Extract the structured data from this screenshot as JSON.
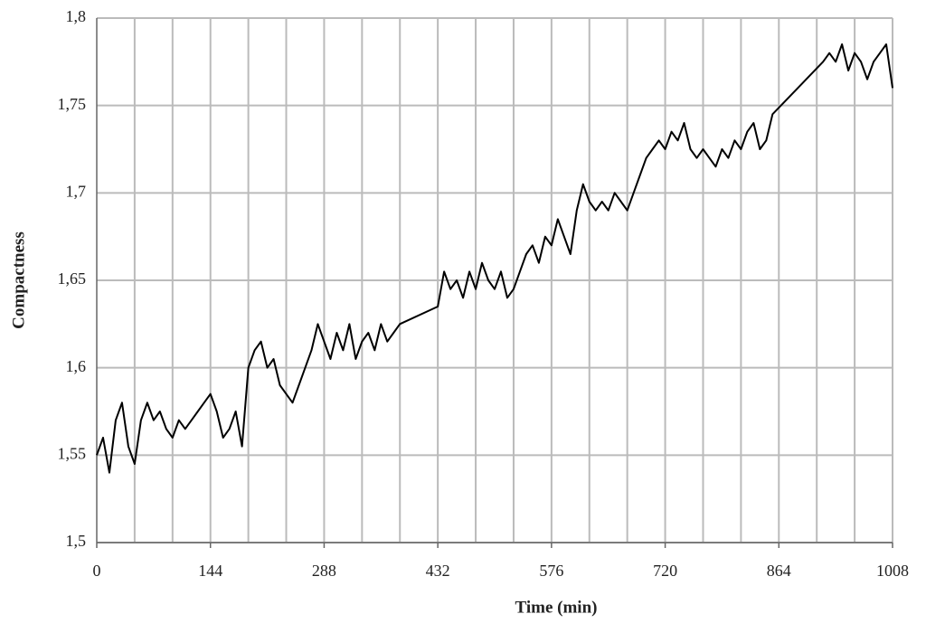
{
  "chart_data": {
    "type": "line",
    "x_label": "Time (min)",
    "y_label": "Compactness",
    "xlim": [
      0,
      1008
    ],
    "xticks": [
      0,
      144,
      288,
      432,
      576,
      720,
      864,
      1008
    ],
    "xgrid": [
      48,
      96,
      144,
      192,
      240,
      288,
      336,
      384,
      432,
      480,
      528,
      576,
      624,
      672,
      720,
      768,
      816,
      864,
      912,
      960,
      1008
    ],
    "ylim": [
      1.5,
      1.8
    ],
    "yticks": [
      {
        "value": 1.5,
        "label": "1,5"
      },
      {
        "value": 1.55,
        "label": "1,55"
      },
      {
        "value": 1.6,
        "label": "1,6"
      },
      {
        "value": 1.65,
        "label": "1,65"
      },
      {
        "value": 1.7,
        "label": "1,7"
      },
      {
        "value": 1.75,
        "label": "1,75"
      },
      {
        "value": 1.8,
        "label": "1,8"
      }
    ],
    "grid": true,
    "series": [
      {
        "color": "#000000",
        "x": [
          0,
          8,
          16,
          24,
          32,
          40,
          48,
          56,
          64,
          72,
          80,
          88,
          96,
          104,
          112,
          120,
          128,
          136,
          144,
          152,
          160,
          168,
          176,
          184,
          192,
          200,
          208,
          216,
          224,
          232,
          240,
          248,
          256,
          264,
          272,
          280,
          288,
          296,
          304,
          312,
          320,
          328,
          336,
          344,
          352,
          360,
          368,
          376,
          384,
          432,
          440,
          448,
          456,
          464,
          472,
          480,
          488,
          496,
          504,
          512,
          520,
          528,
          536,
          544,
          552,
          560,
          568,
          576,
          584,
          592,
          600,
          608,
          616,
          624,
          632,
          640,
          648,
          656,
          664,
          672,
          680,
          688,
          696,
          704,
          712,
          720,
          728,
          736,
          744,
          752,
          760,
          768,
          776,
          784,
          792,
          800,
          808,
          816,
          824,
          832,
          840,
          848,
          856,
          920,
          928,
          936,
          944,
          952,
          960,
          968,
          976,
          984,
          992,
          1000,
          1008
        ],
        "values": [
          1.55,
          1.56,
          1.54,
          1.57,
          1.58,
          1.555,
          1.545,
          1.57,
          1.58,
          1.57,
          1.575,
          1.565,
          1.56,
          1.57,
          1.565,
          1.57,
          1.575,
          1.58,
          1.585,
          1.575,
          1.56,
          1.565,
          1.575,
          1.555,
          1.6,
          1.61,
          1.615,
          1.6,
          1.605,
          1.59,
          1.585,
          1.58,
          1.59,
          1.6,
          1.61,
          1.625,
          1.615,
          1.605,
          1.62,
          1.61,
          1.625,
          1.605,
          1.615,
          1.62,
          1.61,
          1.625,
          1.615,
          1.62,
          1.625,
          1.635,
          1.655,
          1.645,
          1.65,
          1.64,
          1.655,
          1.645,
          1.66,
          1.65,
          1.645,
          1.655,
          1.64,
          1.645,
          1.655,
          1.665,
          1.67,
          1.66,
          1.675,
          1.67,
          1.685,
          1.675,
          1.665,
          1.69,
          1.705,
          1.695,
          1.69,
          1.695,
          1.69,
          1.7,
          1.695,
          1.69,
          1.7,
          1.71,
          1.72,
          1.725,
          1.73,
          1.725,
          1.735,
          1.73,
          1.74,
          1.725,
          1.72,
          1.725,
          1.72,
          1.715,
          1.725,
          1.72,
          1.73,
          1.725,
          1.735,
          1.74,
          1.725,
          1.73,
          1.745,
          1.775,
          1.78,
          1.775,
          1.785,
          1.77,
          1.78,
          1.775,
          1.765,
          1.775,
          1.78,
          1.785,
          1.76
        ]
      }
    ]
  }
}
